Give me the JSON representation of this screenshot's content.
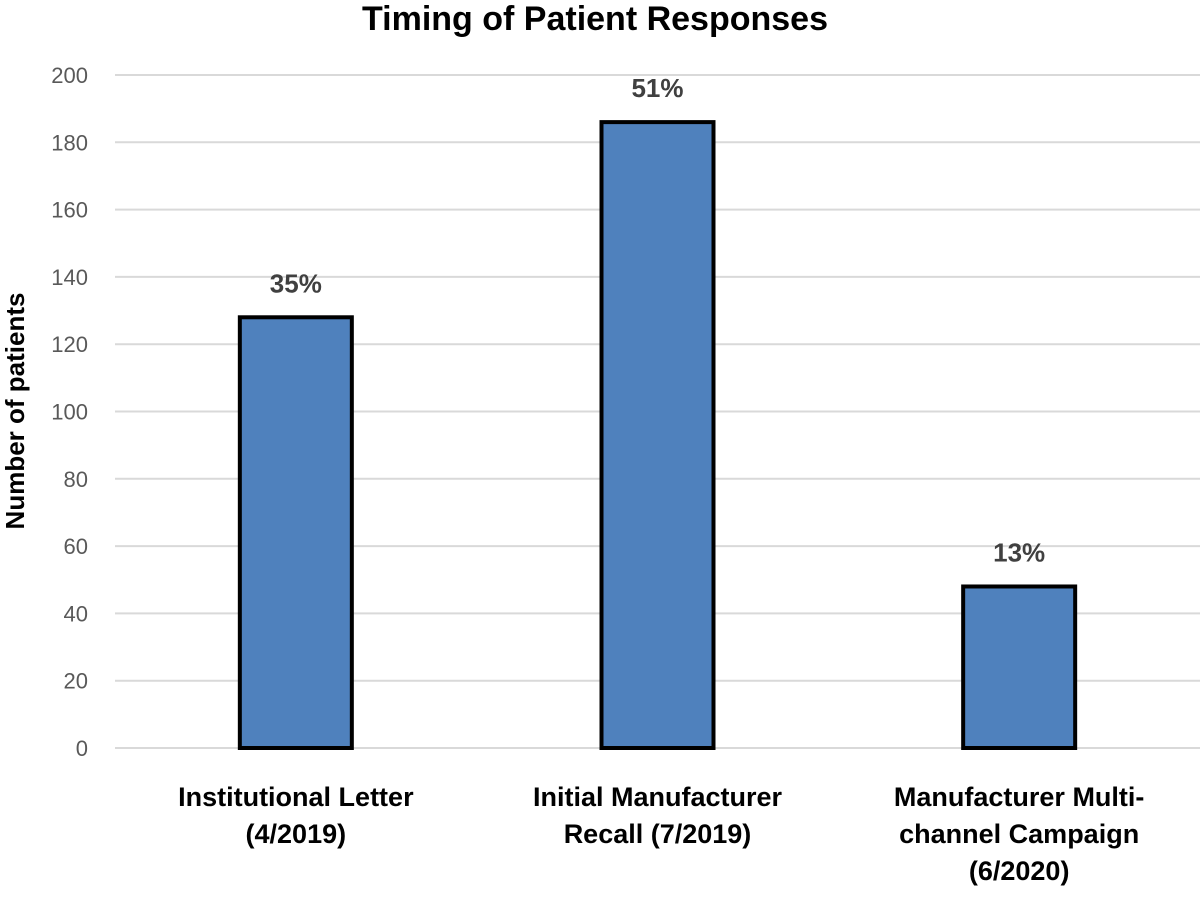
{
  "chart_data": {
    "type": "bar",
    "title": "Timing of Patient Responses",
    "ylabel": "Number of patients",
    "xlabel": "",
    "ylim": [
      0,
      200
    ],
    "ytick_step": 20,
    "grid": true,
    "bar_color": "#4f81bd",
    "categories": [
      [
        "Institutional Letter",
        "(4/2019)"
      ],
      [
        "Initial Manufacturer",
        "Recall (7/2019)"
      ],
      [
        "Manufacturer Multi-",
        "channel Campaign",
        "(6/2020)"
      ]
    ],
    "values": [
      128,
      186,
      48
    ],
    "data_labels": [
      "35%",
      "51%",
      "13%"
    ]
  }
}
